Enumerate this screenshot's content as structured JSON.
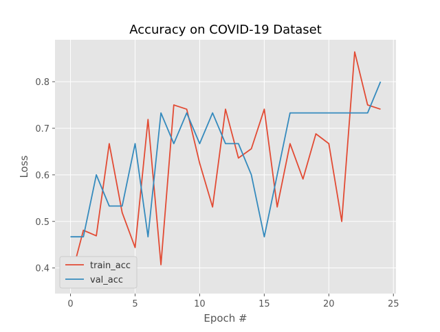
{
  "chart_data": {
    "type": "line",
    "title": "Accuracy on COVID-19 Dataset",
    "xlabel": "Epoch #",
    "ylabel": "Loss",
    "xlim": [
      -1.2,
      25.2
    ],
    "ylim": [
      0.345,
      0.89
    ],
    "xticks": [
      0,
      5,
      10,
      15,
      20,
      25
    ],
    "yticks": [
      0.4,
      0.5,
      0.6,
      0.7,
      0.8
    ],
    "ytick_labels": [
      "0.4",
      "0.5",
      "0.6",
      "0.7",
      "0.8"
    ],
    "x": [
      0,
      1,
      2,
      3,
      4,
      5,
      6,
      7,
      8,
      9,
      10,
      11,
      12,
      13,
      14,
      15,
      16,
      17,
      18,
      19,
      20,
      21,
      22,
      23,
      24
    ],
    "series": [
      {
        "name": "train_acc",
        "color": "#e24a33",
        "values": [
          0.375,
          0.481,
          0.469,
          0.667,
          0.519,
          0.444,
          0.719,
          0.407,
          0.75,
          0.741,
          0.625,
          0.531,
          0.741,
          0.636,
          0.656,
          0.741,
          0.531,
          0.667,
          0.591,
          0.688,
          0.667,
          0.5,
          0.864,
          0.75,
          0.741
        ]
      },
      {
        "name": "val_acc",
        "color": "#348abd",
        "values": [
          0.467,
          0.467,
          0.6,
          0.533,
          0.533,
          0.667,
          0.467,
          0.733,
          0.667,
          0.733,
          0.667,
          0.733,
          0.667,
          0.667,
          0.6,
          0.467,
          0.6,
          0.733,
          0.733,
          0.733,
          0.733,
          0.733,
          0.733,
          0.733,
          0.8
        ]
      }
    ],
    "grid": true,
    "legend_position": "lower-left",
    "style": {
      "plot_background": "#e5e5e5",
      "grid_color": "#ffffff"
    }
  }
}
